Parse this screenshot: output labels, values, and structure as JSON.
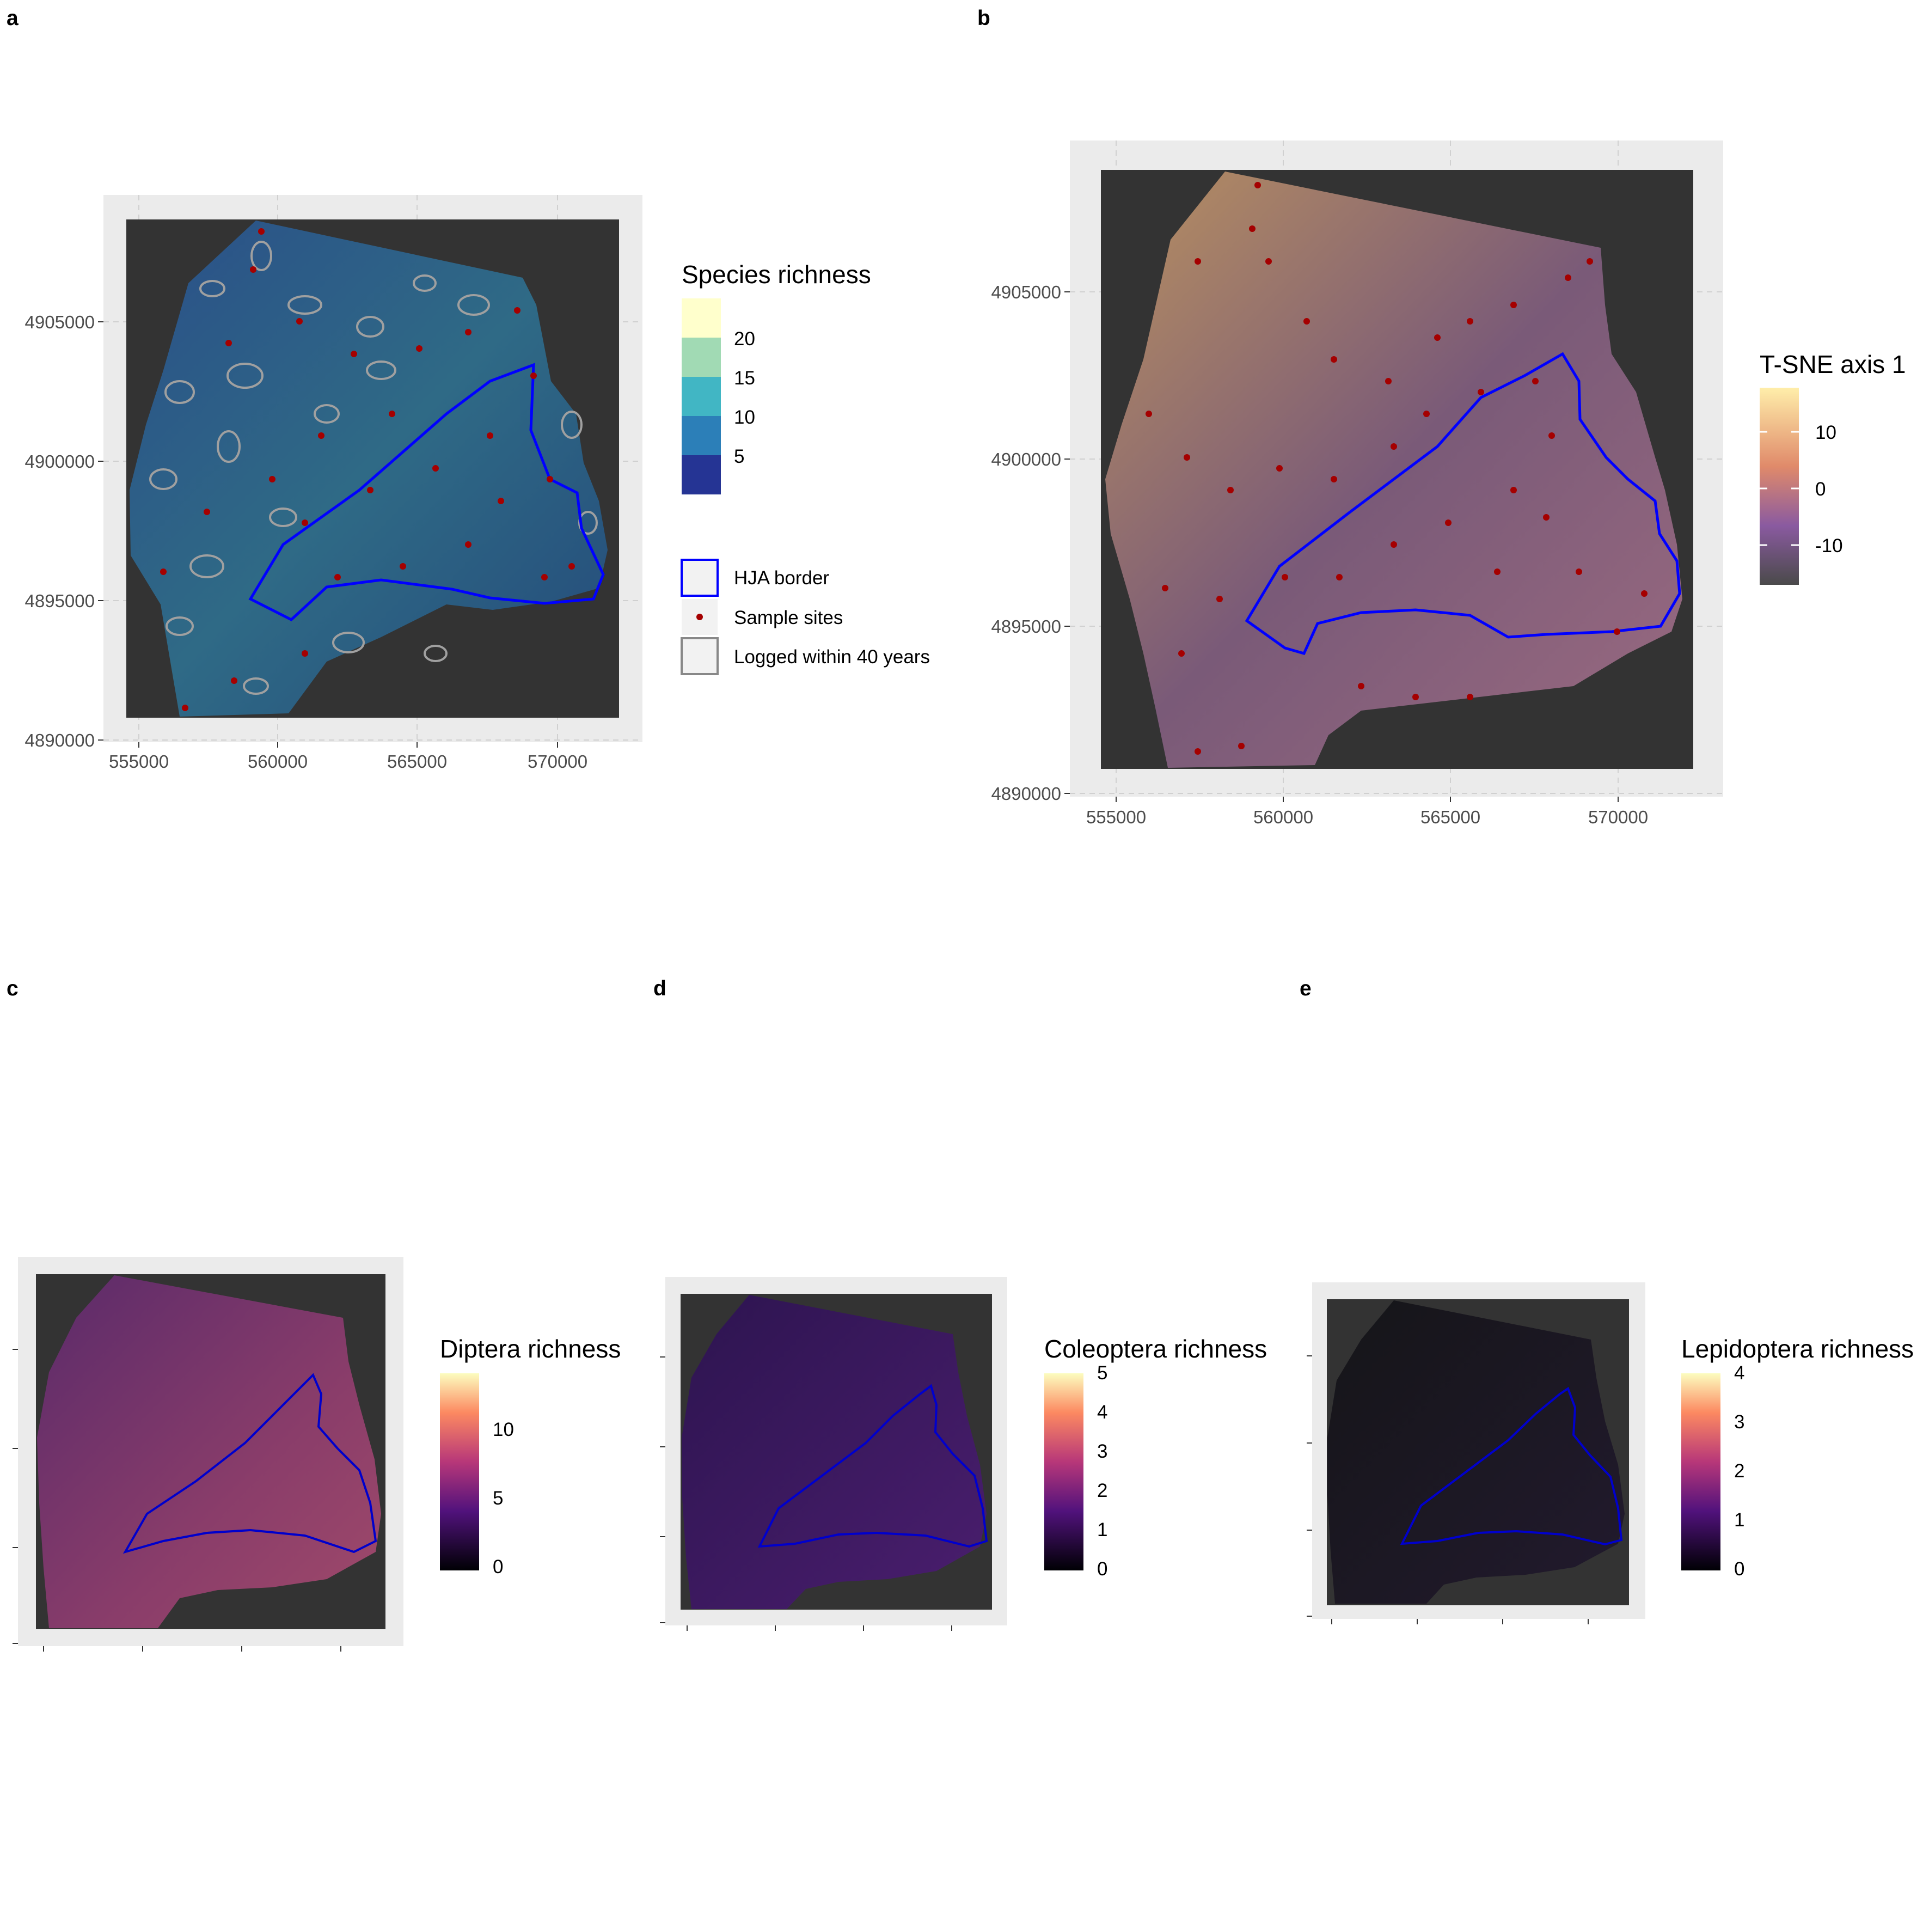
{
  "panels": {
    "a": {
      "label": "a",
      "x_ticks": [
        "555000",
        "560000",
        "565000",
        "570000"
      ],
      "y_ticks": [
        "4890000",
        "4895000",
        "4900000",
        "4905000"
      ],
      "legend": {
        "title": "Species richness",
        "bins": [
          {
            "label": "20",
            "color": "#ffffcc"
          },
          {
            "label": "15",
            "color": "#a1dab4"
          },
          {
            "label": "10",
            "color": "#41b6c4"
          },
          {
            "label": "5",
            "color": "#2c7fb8"
          },
          {
            "label": "",
            "color": "#253494"
          }
        ],
        "items": {
          "hja": "HJA border",
          "sites": "Sample sites",
          "logged": "Logged within 40 years"
        }
      }
    },
    "b": {
      "label": "b",
      "x_ticks": [
        "555000",
        "560000",
        "565000",
        "570000"
      ],
      "y_ticks": [
        "4890000",
        "4895000",
        "4900000",
        "4905000"
      ],
      "legend": {
        "title": "T-SNE axis 1",
        "ticks": [
          "10",
          "0",
          "-10"
        ]
      }
    },
    "c": {
      "label": "c",
      "legend": {
        "title": "Diptera richness",
        "ticks": [
          "10",
          "5",
          "0"
        ]
      }
    },
    "d": {
      "label": "d",
      "legend": {
        "title": "Coleoptera richness",
        "ticks": [
          "5",
          "4",
          "3",
          "2",
          "1",
          "0"
        ]
      }
    },
    "e": {
      "label": "e",
      "legend": {
        "title": "Lepidoptera richness",
        "ticks": [
          "4",
          "3",
          "2",
          "1",
          "0"
        ]
      }
    }
  },
  "colors": {
    "plot_background": "#ebebeb",
    "raster_background": "#333333",
    "hja_border": "#0000ff",
    "sample_sites": "#a50000",
    "logged_outline": "#a0a0a0"
  }
}
